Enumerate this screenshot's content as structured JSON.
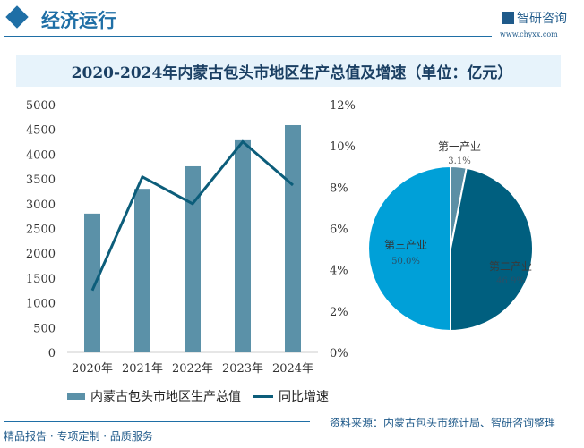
{
  "header": {
    "section_title": "经济运行",
    "logo_text": "智研咨询",
    "logo_url": "www.chyxx.com"
  },
  "chart_title": "2020-2024年内蒙古包头市地区生产总值及增速（单位：亿元）",
  "chart_data": [
    {
      "type": "bar+line",
      "categories": [
        "2020年",
        "2021年",
        "2022年",
        "2023年",
        "2024年"
      ],
      "series": [
        {
          "name": "内蒙古包头市地区生产总值",
          "type": "bar",
          "axis": "left",
          "values": [
            2800,
            3300,
            3755,
            4280,
            4585
          ],
          "color": "#5b91a8"
        },
        {
          "name": "同比增速",
          "type": "line",
          "axis": "right",
          "values": [
            3.0,
            8.5,
            7.2,
            10.2,
            8.1
          ],
          "color": "#0c5d7a"
        }
      ],
      "left_axis": {
        "ylim": [
          0,
          5000
        ],
        "ticks": [
          "0",
          "500",
          "1000",
          "1500",
          "2000",
          "2500",
          "3000",
          "3500",
          "4000",
          "4500",
          "5000"
        ]
      },
      "right_axis": {
        "ylim": [
          0,
          12
        ],
        "ticks": [
          "0%",
          "2%",
          "4%",
          "6%",
          "8%",
          "10%",
          "12%"
        ]
      },
      "legend": "bottom"
    },
    {
      "type": "pie",
      "slices": [
        {
          "label": "第一产业",
          "value": 3.1,
          "text": "3.1%",
          "color": "#5b8fa5"
        },
        {
          "label": "第二产业",
          "value": 46.9,
          "text": "46.9%",
          "color": "#005f7f"
        },
        {
          "label": "第三产业",
          "value": 50.0,
          "text": "50.0%",
          "color": "#00a0d8"
        }
      ]
    }
  ],
  "footer": {
    "left": "精品报告 · 专项定制 · 品质服务",
    "source": "资料来源：内蒙古包头市统计局、智研咨询整理"
  }
}
